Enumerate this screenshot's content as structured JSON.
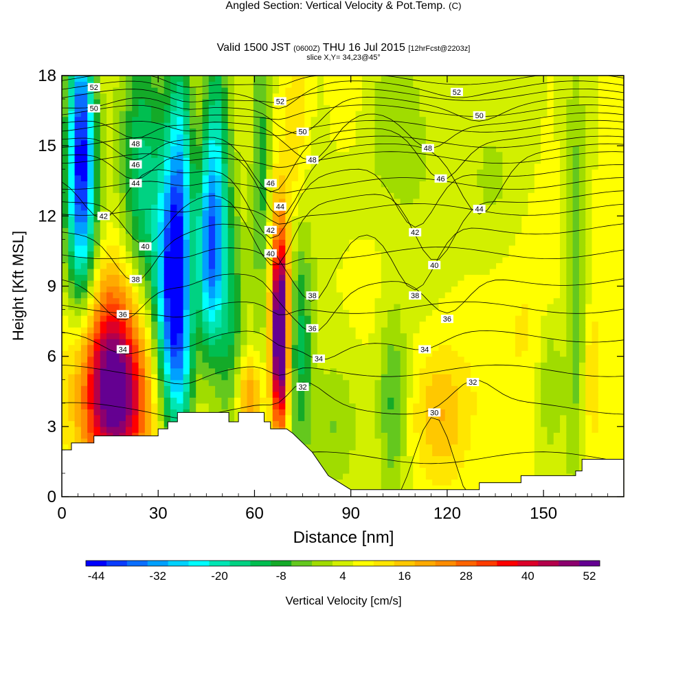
{
  "header": {
    "title": "Angled Section: Vertical Velocity & Pot.Temp.",
    "title_mark": "(C)",
    "valid_prefix": "Valid 1500 JST",
    "valid_zulu": "(0600Z)",
    "valid_date": "THU 16 Jul 2015",
    "forecast": "[12hrFcst@2203z]",
    "slice": "slice X,Y= 34,23@45°"
  },
  "chart_data": {
    "type": "heatmap",
    "xlabel": "Distance [nm]",
    "ylabel": "Height [Kft MSL]",
    "xlim": [
      0,
      175
    ],
    "ylim": [
      0,
      18
    ],
    "x_ticks": [
      0,
      30,
      60,
      90,
      120,
      150
    ],
    "y_ticks": [
      0,
      3,
      6,
      9,
      12,
      15,
      18
    ],
    "colorbar": {
      "label": "Vertical Velocity [cm/s]",
      "min": -46,
      "step": 4,
      "tick_values": [
        -44,
        -32,
        -20,
        -8,
        4,
        16,
        28,
        40,
        52
      ],
      "colors": [
        "#0000ff",
        "#0a3cff",
        "#0a6eff",
        "#00a0ff",
        "#00d2ff",
        "#00ffff",
        "#00e6b4",
        "#00d282",
        "#00be50",
        "#14aa28",
        "#64c81e",
        "#a0dc00",
        "#d2f000",
        "#ffff00",
        "#ffe600",
        "#ffc800",
        "#ffaa00",
        "#ff8c00",
        "#ff6400",
        "#ff3c00",
        "#ff0000",
        "#dc0028",
        "#b4004b",
        "#8c006e",
        "#640091"
      ]
    },
    "terrain_kft": [
      [
        0,
        2.0
      ],
      [
        3,
        2.0
      ],
      [
        3,
        2.3
      ],
      [
        10,
        2.3
      ],
      [
        10,
        2.6
      ],
      [
        30,
        2.6
      ],
      [
        30,
        2.9
      ],
      [
        33,
        2.9
      ],
      [
        33,
        3.2
      ],
      [
        36,
        3.2
      ],
      [
        36,
        3.6
      ],
      [
        52,
        3.6
      ],
      [
        52,
        3.2
      ],
      [
        55,
        3.2
      ],
      [
        55,
        3.6
      ],
      [
        63,
        3.6
      ],
      [
        63,
        3.2
      ],
      [
        65,
        3.2
      ],
      [
        65,
        2.9
      ],
      [
        70,
        2.9
      ],
      [
        72,
        2.7
      ],
      [
        78,
        1.9
      ],
      [
        83,
        0.9
      ],
      [
        90,
        0.3
      ],
      [
        98,
        0.3
      ],
      [
        130,
        0.3
      ],
      [
        130,
        0.6
      ],
      [
        143,
        0.6
      ],
      [
        143,
        0.9
      ],
      [
        160,
        0.9
      ],
      [
        160,
        1.1
      ],
      [
        162,
        1.1
      ],
      [
        162,
        1.6
      ],
      [
        175,
        1.6
      ]
    ],
    "theta_labels": [
      {
        "x": 10,
        "y": 17.5,
        "text": "52"
      },
      {
        "x": 10,
        "y": 16.6,
        "text": "50"
      },
      {
        "x": 23,
        "y": 15.1,
        "text": "48"
      },
      {
        "x": 23,
        "y": 14.2,
        "text": "46"
      },
      {
        "x": 23,
        "y": 13.4,
        "text": "44"
      },
      {
        "x": 13,
        "y": 12.0,
        "text": "42"
      },
      {
        "x": 26,
        "y": 10.7,
        "text": "40"
      },
      {
        "x": 23,
        "y": 9.3,
        "text": "38"
      },
      {
        "x": 19,
        "y": 7.8,
        "text": "36"
      },
      {
        "x": 19,
        "y": 6.3,
        "text": "34"
      },
      {
        "x": 68,
        "y": 16.9,
        "text": "52"
      },
      {
        "x": 75,
        "y": 15.6,
        "text": "50"
      },
      {
        "x": 78,
        "y": 14.4,
        "text": "48"
      },
      {
        "x": 65,
        "y": 13.4,
        "text": "46"
      },
      {
        "x": 68,
        "y": 12.4,
        "text": "44"
      },
      {
        "x": 65,
        "y": 11.4,
        "text": "42"
      },
      {
        "x": 65,
        "y": 10.4,
        "text": "40"
      },
      {
        "x": 78,
        "y": 8.6,
        "text": "38"
      },
      {
        "x": 78,
        "y": 7.2,
        "text": "36"
      },
      {
        "x": 80,
        "y": 5.9,
        "text": "34"
      },
      {
        "x": 75,
        "y": 4.7,
        "text": "32"
      },
      {
        "x": 123,
        "y": 17.3,
        "text": "52"
      },
      {
        "x": 130,
        "y": 16.3,
        "text": "50"
      },
      {
        "x": 114,
        "y": 14.9,
        "text": "48"
      },
      {
        "x": 118,
        "y": 13.6,
        "text": "46"
      },
      {
        "x": 130,
        "y": 12.3,
        "text": "44"
      },
      {
        "x": 110,
        "y": 11.3,
        "text": "42"
      },
      {
        "x": 116,
        "y": 9.9,
        "text": "40"
      },
      {
        "x": 110,
        "y": 8.6,
        "text": "38"
      },
      {
        "x": 120,
        "y": 7.6,
        "text": "36"
      },
      {
        "x": 113,
        "y": 6.3,
        "text": "34"
      },
      {
        "x": 128,
        "y": 4.9,
        "text": "32"
      },
      {
        "x": 116,
        "y": 3.6,
        "text": "30"
      }
    ],
    "theta_levels": [
      30,
      31,
      32,
      33,
      34,
      35,
      36,
      37,
      38,
      39,
      40,
      41,
      42,
      43,
      44,
      45,
      46,
      47,
      48,
      49,
      50,
      51,
      52,
      53
    ],
    "w_base": 6,
    "w_features": [
      {
        "x": 6,
        "y": 15,
        "sx": 3,
        "sy": 4,
        "a": -48
      },
      {
        "x": 7,
        "y": 10,
        "sx": 5,
        "sy": 3,
        "a": -14
      },
      {
        "x": 17,
        "y": 4,
        "sx": 7,
        "sy": 2.5,
        "a": 40
      },
      {
        "x": 15,
        "y": 7,
        "sx": 9,
        "sy": 3,
        "a": 22
      },
      {
        "x": 25,
        "y": 13,
        "sx": 5,
        "sy": 5,
        "a": -22
      },
      {
        "x": 34,
        "y": 9,
        "sx": 3.5,
        "sy": 3.5,
        "a": -40
      },
      {
        "x": 37,
        "y": 14,
        "sx": 3,
        "sy": 4,
        "a": -28
      },
      {
        "x": 38,
        "y": 5.5,
        "sx": 4,
        "sy": 3,
        "a": -22
      },
      {
        "x": 46,
        "y": 10.5,
        "sx": 3.5,
        "sy": 3,
        "a": -44
      },
      {
        "x": 48,
        "y": 16,
        "sx": 3,
        "sy": 3,
        "a": -18
      },
      {
        "x": 53,
        "y": 7,
        "sx": 3,
        "sy": 4,
        "a": -14
      },
      {
        "x": 42,
        "y": 8,
        "sx": 2.5,
        "sy": 6,
        "a": 12
      },
      {
        "x": 68,
        "y": 6.5,
        "sx": 1.8,
        "sy": 2.6,
        "a": 52
      },
      {
        "x": 68,
        "y": 9.5,
        "sx": 2.2,
        "sy": 3,
        "a": 18
      },
      {
        "x": 58,
        "y": 4.3,
        "sx": 3,
        "sy": 1.2,
        "a": 18
      },
      {
        "x": 74,
        "y": 7,
        "sx": 3,
        "sy": 4,
        "a": -18
      },
      {
        "x": 62,
        "y": 14,
        "sx": 2,
        "sy": 5,
        "a": -14
      },
      {
        "x": 73,
        "y": 15,
        "sx": 2.5,
        "sy": 4,
        "a": 8
      },
      {
        "x": 103,
        "y": 13,
        "sx": 10,
        "sy": 5,
        "a": -8
      },
      {
        "x": 103,
        "y": 4,
        "sx": 3,
        "sy": 3,
        "a": -12
      },
      {
        "x": 100,
        "y": 10,
        "sx": 8,
        "sy": 3,
        "a": 7
      },
      {
        "x": 118,
        "y": 3.5,
        "sx": 6,
        "sy": 2,
        "a": 12
      },
      {
        "x": 145,
        "y": 8,
        "sx": 14,
        "sy": 4,
        "a": 5
      },
      {
        "x": 135,
        "y": 13,
        "sx": 8,
        "sy": 3,
        "a": -6
      },
      {
        "x": 160,
        "y": 9,
        "sx": 2.5,
        "sy": 6,
        "a": -14
      },
      {
        "x": 152,
        "y": 5,
        "sx": 3,
        "sy": 2.5,
        "a": -10
      },
      {
        "x": 165,
        "y": 5,
        "sx": 2,
        "sy": 2,
        "a": 8
      },
      {
        "x": 85,
        "y": 3,
        "sx": 5,
        "sy": 2,
        "a": -8
      },
      {
        "x": 90,
        "y": 17,
        "sx": 4,
        "sy": 2,
        "a": 4
      }
    ]
  }
}
